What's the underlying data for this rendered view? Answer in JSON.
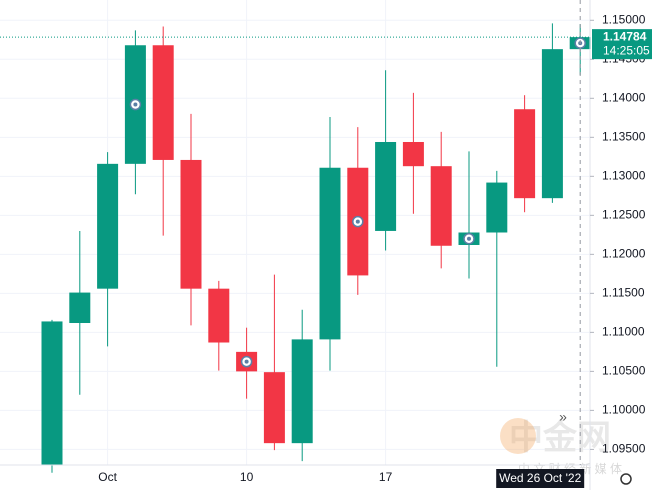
{
  "chart_data": {
    "type": "candlestick",
    "categories": [
      null,
      null,
      "Oct",
      null,
      null,
      null,
      null,
      "10",
      null,
      null,
      null,
      null,
      "17",
      null,
      null,
      null,
      null,
      null,
      null,
      null
    ],
    "open": [
      1.093,
      1.1112,
      1.1156,
      1.1316,
      1.1468,
      1.1321,
      1.1156,
      1.1075,
      1.1049,
      1.0958,
      1.1091,
      1.1311,
      1.123,
      1.1344,
      1.1313,
      1.1212,
      1.1228,
      1.1386,
      1.1272,
      1.1463
    ],
    "high": [
      1.1116,
      1.123,
      1.1331,
      1.1487,
      1.1492,
      1.138,
      1.1166,
      1.1106,
      1.1174,
      1.1129,
      1.1376,
      1.1363,
      1.1436,
      1.1407,
      1.1357,
      1.1332,
      1.1307,
      1.1404,
      1.1496,
      1.1495
    ],
    "low": [
      1.092,
      1.102,
      1.1082,
      1.1277,
      1.1224,
      1.1109,
      1.1051,
      1.1015,
      1.0949,
      1.0935,
      1.1051,
      1.1148,
      1.1205,
      1.1252,
      1.1182,
      1.1169,
      1.1056,
      1.1254,
      1.1266,
      1.143
    ],
    "close": [
      1.1114,
      1.1151,
      1.1316,
      1.1468,
      1.1321,
      1.1156,
      1.1087,
      1.105,
      1.0958,
      1.1091,
      1.1311,
      1.1173,
      1.1344,
      1.1313,
      1.1211,
      1.1228,
      1.1292,
      1.1272,
      1.1463,
      1.14784
    ],
    "up_color": "#089981",
    "down_color": "#f23645",
    "ylim": [
      1.093,
      1.1526
    ],
    "yticks": [
      {
        "value": 1.15,
        "label": "1.15000"
      },
      {
        "value": 1.145,
        "label": "1.14500"
      },
      {
        "value": 1.14,
        "label": "1.14000"
      },
      {
        "value": 1.135,
        "label": "1.13500"
      },
      {
        "value": 1.13,
        "label": "1.13000"
      },
      {
        "value": 1.125,
        "label": "1.12500"
      },
      {
        "value": 1.12,
        "label": "1.12000"
      },
      {
        "value": 1.115,
        "label": "1.11500"
      },
      {
        "value": 1.11,
        "label": "1.11000"
      },
      {
        "value": 1.105,
        "label": "1.10500"
      },
      {
        "value": 1.1,
        "label": "1.10000"
      },
      {
        "value": 1.095,
        "label": "1.09500"
      }
    ],
    "last_price": 1.14784,
    "countdown": "14:25:05",
    "crosshair_label": "Wed 26 Oct '22",
    "watermark": "中金网",
    "watermark_sub": "中 文 财 经 新 媒 体"
  }
}
